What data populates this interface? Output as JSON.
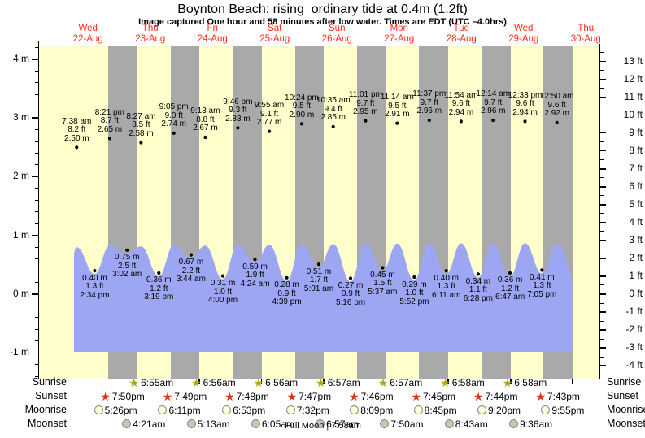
{
  "title": "Boynton Beach: rising  ordinary tide at 0.4m (1.2ft)",
  "subtitle": "Image captured One hour and 58 minutes after low water. Times are EDT (UTC –4.0hrs)",
  "full_moon_note": "Full Moon | 7:58am",
  "colors": {
    "day_band": "#ffffcc",
    "night_band": "#a9a9a9",
    "tide_fill": "#9da6f2",
    "date_label": "#ff2d1a",
    "sunrise_star": "#b3a413",
    "sunset_star": "#dd3310",
    "moonrise_fill": "#ffffd9",
    "moonset_fill": "#c6c6b2",
    "moon_border": "#8a8a8a"
  },
  "chart_data": {
    "type": "line",
    "title": "Boynton Beach: rising  ordinary tide at 0.4m (1.2ft)",
    "subtitle": "Image captured One hour and 58 minutes after low water. Times are EDT (UTC –4.0hrs)",
    "y_axis_left": {
      "unit": "m",
      "min": -1,
      "max": 4,
      "ticks": [
        {
          "v": 4,
          "label": "4 m"
        },
        {
          "v": 3,
          "label": "3 m"
        },
        {
          "v": 2,
          "label": "2 m"
        },
        {
          "v": 1,
          "label": "1 m"
        },
        {
          "v": 0,
          "label": "0 m"
        },
        {
          "v": -1,
          "label": "-1 m"
        }
      ]
    },
    "y_axis_right": {
      "unit": "ft",
      "min": -4,
      "max": 13,
      "ticks": [
        {
          "v": 13,
          "label": "13 ft"
        },
        {
          "v": 12,
          "label": "12 ft"
        },
        {
          "v": 11,
          "label": "11 ft"
        },
        {
          "v": 10,
          "label": "10 ft"
        },
        {
          "v": 9,
          "label": "9 ft"
        },
        {
          "v": 8,
          "label": "8 ft"
        },
        {
          "v": 7,
          "label": "7 ft"
        },
        {
          "v": 6,
          "label": "6 ft"
        },
        {
          "v": 5,
          "label": "5 ft"
        },
        {
          "v": 4,
          "label": "4 ft"
        },
        {
          "v": 3,
          "label": "3 ft"
        },
        {
          "v": 2,
          "label": "2 ft"
        },
        {
          "v": 1,
          "label": "1 ft"
        },
        {
          "v": 0,
          "label": "0 ft"
        },
        {
          "v": -1,
          "label": "-1 ft"
        },
        {
          "v": -2,
          "label": "-2 ft"
        },
        {
          "v": -3,
          "label": "-3 ft"
        },
        {
          "v": -4,
          "label": "-4 ft"
        }
      ]
    },
    "days": [
      {
        "dow": "Wed",
        "date": "22-Aug"
      },
      {
        "dow": "Thu",
        "date": "23-Aug"
      },
      {
        "dow": "Fri",
        "date": "24-Aug"
      },
      {
        "dow": "Sat",
        "date": "25-Aug"
      },
      {
        "dow": "Sun",
        "date": "26-Aug"
      },
      {
        "dow": "Mon",
        "date": "27-Aug"
      },
      {
        "dow": "Tue",
        "date": "28-Aug"
      },
      {
        "dow": "Wed",
        "date": "29-Aug"
      },
      {
        "dow": "Thu",
        "date": "30-Aug"
      }
    ],
    "tide_events": [
      {
        "type": "high",
        "d": 0,
        "t": "7:38 am",
        "ft": "8.2 ft",
        "m": "2.50 m",
        "mv": 2.5
      },
      {
        "type": "low",
        "d": 0,
        "t": "2:34 pm",
        "ft": "1.3 ft",
        "m": "0.40 m",
        "mv": 0.4
      },
      {
        "type": "high",
        "d": 0,
        "t": "8:21 pm",
        "ft": "8.7 ft",
        "m": "2.65 m",
        "mv": 2.65
      },
      {
        "type": "low",
        "d": 1,
        "t": "3:02 am",
        "ft": "2.5 ft",
        "m": "0.75 m",
        "mv": 0.75
      },
      {
        "type": "high",
        "d": 1,
        "t": "8:27 am",
        "ft": "8.5 ft",
        "m": "2.58 m",
        "mv": 2.58
      },
      {
        "type": "low",
        "d": 1,
        "t": "3:19 pm",
        "ft": "1.2 ft",
        "m": "0.36 m",
        "mv": 0.36
      },
      {
        "type": "high",
        "d": 1,
        "t": "9:05 pm",
        "ft": "9.0 ft",
        "m": "2.74 m",
        "mv": 2.74
      },
      {
        "type": "low",
        "d": 2,
        "t": "3:44 am",
        "ft": "2.2 ft",
        "m": "0.67 m",
        "mv": 0.67
      },
      {
        "type": "high",
        "d": 2,
        "t": "9:13 am",
        "ft": "8.8 ft",
        "m": "2.67 m",
        "mv": 2.67
      },
      {
        "type": "low",
        "d": 2,
        "t": "4:00 pm",
        "ft": "1.0 ft",
        "m": "0.31 m",
        "mv": 0.31
      },
      {
        "type": "high",
        "d": 2,
        "t": "9:46 pm",
        "ft": "9.3 ft",
        "m": "2.83 m",
        "mv": 2.83
      },
      {
        "type": "low",
        "d": 3,
        "t": "4:24 am",
        "ft": "1.9 ft",
        "m": "0.59 m",
        "mv": 0.59
      },
      {
        "type": "high",
        "d": 3,
        "t": "9:55 am",
        "ft": "9.1 ft",
        "m": "2.77 m",
        "mv": 2.77
      },
      {
        "type": "low",
        "d": 3,
        "t": "4:39 pm",
        "ft": "0.9 ft",
        "m": "0.28 m",
        "mv": 0.28
      },
      {
        "type": "high",
        "d": 3,
        "t": "10:24 pm",
        "ft": "9.5 ft",
        "m": "2.90 m",
        "mv": 2.9
      },
      {
        "type": "low",
        "d": 4,
        "t": "5:01 am",
        "ft": "1.7 ft",
        "m": "0.51 m",
        "mv": 0.51
      },
      {
        "type": "high",
        "d": 4,
        "t": "10:35 am",
        "ft": "9.4 ft",
        "m": "2.85 m",
        "mv": 2.85
      },
      {
        "type": "low",
        "d": 4,
        "t": "5:16 pm",
        "ft": "0.9 ft",
        "m": "0.27 m",
        "mv": 0.27
      },
      {
        "type": "high",
        "d": 4,
        "t": "11:01 pm",
        "ft": "9.7 ft",
        "m": "2.95 m",
        "mv": 2.95
      },
      {
        "type": "low",
        "d": 5,
        "t": "5:37 am",
        "ft": "1.5 ft",
        "m": "0.45 m",
        "mv": 0.45
      },
      {
        "type": "high",
        "d": 5,
        "t": "11:14 am",
        "ft": "9.5 ft",
        "m": "2.91 m",
        "mv": 2.91
      },
      {
        "type": "low",
        "d": 5,
        "t": "5:52 pm",
        "ft": "1.0 ft",
        "m": "0.29 m",
        "mv": 0.29
      },
      {
        "type": "high",
        "d": 5,
        "t": "11:37 pm",
        "ft": "9.7 ft",
        "m": "2.96 m",
        "mv": 2.96
      },
      {
        "type": "low",
        "d": 6,
        "t": "6:11 am",
        "ft": "1.3 ft",
        "m": "0.40 m",
        "mv": 0.4
      },
      {
        "type": "high",
        "d": 6,
        "t": "11:54 am",
        "ft": "9.6 ft",
        "m": "2.94 m",
        "mv": 2.94
      },
      {
        "type": "low",
        "d": 6,
        "t": "6:28 pm",
        "ft": "1.1 ft",
        "m": "0.34 m",
        "mv": 0.34
      },
      {
        "type": "high",
        "d": 7,
        "t": "12:14 am",
        "ft": "9.7 ft",
        "m": "2.96 m",
        "mv": 2.96
      },
      {
        "type": "low",
        "d": 7,
        "t": "6:47 am",
        "ft": "1.2 ft",
        "m": "0.36 m",
        "mv": 0.36
      },
      {
        "type": "high",
        "d": 7,
        "t": "12:33 pm",
        "ft": "9.6 ft",
        "m": "2.94 m",
        "mv": 2.94
      },
      {
        "type": "low",
        "d": 7,
        "t": "7:05 pm",
        "ft": "1.3 ft",
        "m": "0.41 m",
        "mv": 0.41
      },
      {
        "type": "high",
        "d": 8,
        "t": "12:50 am",
        "ft": "9.6 ft",
        "m": "2.92 m",
        "mv": 2.92
      }
    ],
    "astro": {
      "sunrise": {
        "label": "Sunrise",
        "entries": [
          {
            "day": 1,
            "t": "6:55am"
          },
          {
            "day": 2,
            "t": "6:56am"
          },
          {
            "day": 3,
            "t": "6:56am"
          },
          {
            "day": 4,
            "t": "6:57am"
          },
          {
            "day": 5,
            "t": "6:57am"
          },
          {
            "day": 6,
            "t": "6:58am"
          },
          {
            "day": 7,
            "t": "6:58am"
          }
        ]
      },
      "sunset": {
        "label": "Sunset",
        "entries": [
          {
            "day": 0,
            "t": "7:50pm"
          },
          {
            "day": 1,
            "t": "7:49pm"
          },
          {
            "day": 2,
            "t": "7:48pm"
          },
          {
            "day": 3,
            "t": "7:47pm"
          },
          {
            "day": 4,
            "t": "7:46pm"
          },
          {
            "day": 5,
            "t": "7:45pm"
          },
          {
            "day": 6,
            "t": "7:44pm"
          },
          {
            "day": 7,
            "t": "7:43pm"
          }
        ]
      },
      "moonrise": {
        "label": "Moonrise",
        "entries": [
          {
            "day": 0,
            "t": "5:26pm"
          },
          {
            "day": 1,
            "t": "6:11pm"
          },
          {
            "day": 2,
            "t": "6:53pm"
          },
          {
            "day": 3,
            "t": "7:32pm"
          },
          {
            "day": 4,
            "t": "8:09pm"
          },
          {
            "day": 5,
            "t": "8:45pm"
          },
          {
            "day": 6,
            "t": "9:20pm"
          },
          {
            "day": 7,
            "t": "9:55pm"
          }
        ]
      },
      "moonset": {
        "label": "Moonset",
        "entries": [
          {
            "day": 1,
            "t": "4:21am"
          },
          {
            "day": 2,
            "t": "5:13am"
          },
          {
            "day": 3,
            "t": "6:05am"
          },
          {
            "day": 4,
            "t": "6:57am"
          },
          {
            "day": 5,
            "t": "7:50am"
          },
          {
            "day": 6,
            "t": "8:43am"
          },
          {
            "day": 7,
            "t": "9:36am"
          }
        ]
      }
    },
    "full_moon": "Full Moon | 7:58am"
  }
}
